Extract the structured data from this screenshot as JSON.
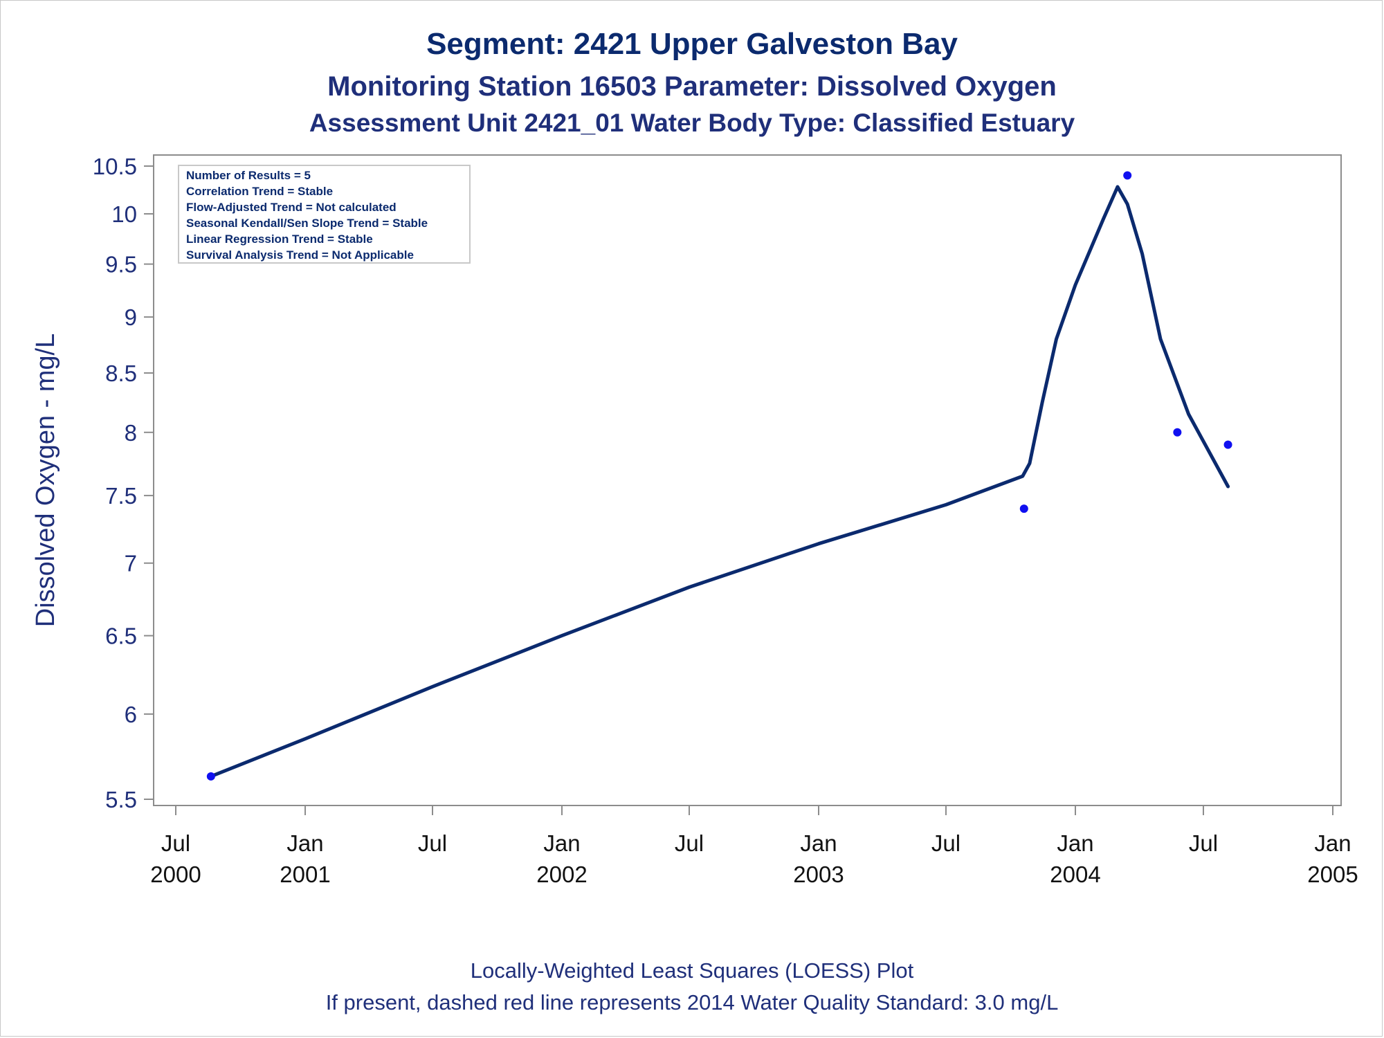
{
  "titles": {
    "line1": "Segment: 2421  Upper Galveston Bay",
    "line2": "Monitoring Station 16503 Parameter: Dissolved Oxygen",
    "line3": "Assessment Unit 2421_01   Water Body Type: Classified Estuary"
  },
  "info_box": {
    "lines": [
      "Number of Results = 5",
      "Correlation Trend = Stable",
      "Flow-Adjusted Trend = Not calculated",
      "Seasonal Kendall/Sen Slope Trend = Stable",
      "Linear Regression Trend = Stable",
      "Survival Analysis Trend = Not Applicable"
    ]
  },
  "footnotes": {
    "line1": "Locally-Weighted Least Squares (LOESS) Plot",
    "line2": "If present, dashed red line represents 2014 Water Quality Standard: 3.0 mg/L"
  },
  "colors": {
    "text": "#1f2f7a",
    "line": "#0b2a6e",
    "points": "#1010f0",
    "axis": "#8c8c8c"
  },
  "chart_data": {
    "type": "scatter",
    "ylabel": "Dissolved Oxygen - mg/L",
    "xlabel": "",
    "y_scale": "log",
    "ylim": [
      5.5,
      10.5
    ],
    "xlim": [
      "2000-07-01",
      "2005-01-01"
    ],
    "yticks": [
      5.5,
      6,
      6.5,
      7,
      7.5,
      8,
      8.5,
      9,
      9.5,
      10,
      10.5
    ],
    "xticks": [
      {
        "date": "2000-07-01",
        "month": "Jul",
        "year": "2000"
      },
      {
        "date": "2001-01-01",
        "month": "Jan",
        "year": "2001"
      },
      {
        "date": "2001-07-01",
        "month": "Jul",
        "year": ""
      },
      {
        "date": "2002-01-01",
        "month": "Jan",
        "year": "2002"
      },
      {
        "date": "2002-07-01",
        "month": "Jul",
        "year": ""
      },
      {
        "date": "2003-01-01",
        "month": "Jan",
        "year": "2003"
      },
      {
        "date": "2003-07-01",
        "month": "Jul",
        "year": ""
      },
      {
        "date": "2004-01-01",
        "month": "Jan",
        "year": "2004"
      },
      {
        "date": "2004-07-01",
        "month": "Jul",
        "year": ""
      },
      {
        "date": "2005-01-01",
        "month": "Jan",
        "year": "2005"
      }
    ],
    "grid": false,
    "series": [
      {
        "kind": "points",
        "points": [
          {
            "x": "2000-08-20",
            "y": 5.63
          },
          {
            "x": "2003-10-20",
            "y": 7.4
          },
          {
            "x": "2004-03-15",
            "y": 10.4
          },
          {
            "x": "2004-05-25",
            "y": 8.0
          },
          {
            "x": "2004-08-05",
            "y": 7.9
          }
        ]
      },
      {
        "kind": "loess",
        "points": [
          {
            "x": "2000-08-20",
            "y": 5.63
          },
          {
            "x": "2001-01-01",
            "y": 5.85
          },
          {
            "x": "2001-07-01",
            "y": 6.17
          },
          {
            "x": "2002-01-01",
            "y": 6.5
          },
          {
            "x": "2002-07-01",
            "y": 6.83
          },
          {
            "x": "2003-01-01",
            "y": 7.14
          },
          {
            "x": "2003-07-01",
            "y": 7.43
          },
          {
            "x": "2003-10-18",
            "y": 7.65
          },
          {
            "x": "2003-10-28",
            "y": 7.75
          },
          {
            "x": "2003-11-15",
            "y": 8.25
          },
          {
            "x": "2003-12-05",
            "y": 8.8
          },
          {
            "x": "2004-01-01",
            "y": 9.3
          },
          {
            "x": "2004-02-10",
            "y": 9.95
          },
          {
            "x": "2004-03-01",
            "y": 10.28
          },
          {
            "x": "2004-03-15",
            "y": 10.1
          },
          {
            "x": "2004-04-05",
            "y": 9.6
          },
          {
            "x": "2004-05-01",
            "y": 8.8
          },
          {
            "x": "2004-06-10",
            "y": 8.15
          },
          {
            "x": "2004-08-05",
            "y": 7.57
          }
        ]
      }
    ]
  }
}
